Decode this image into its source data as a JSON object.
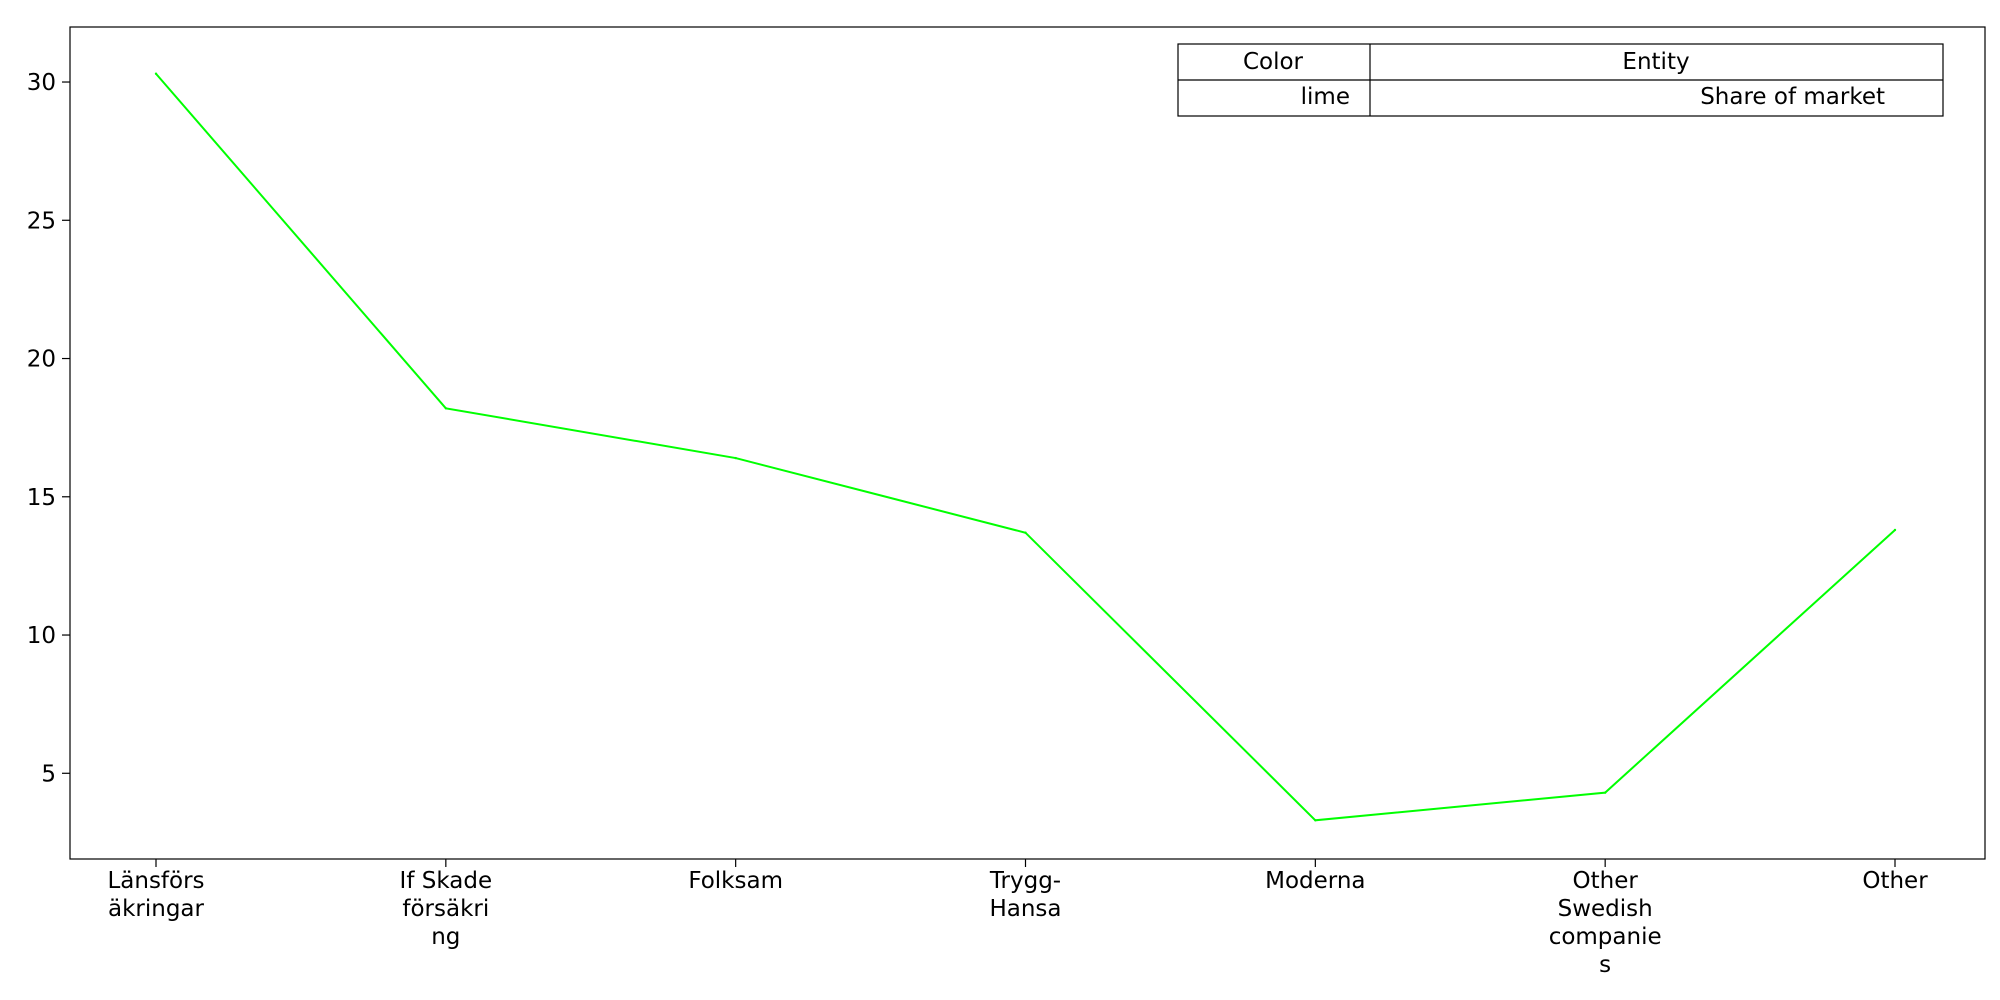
{
  "chart_data": {
    "type": "line",
    "categories": [
      [
        "Länsförs",
        "äkringar"
      ],
      [
        "If Skade",
        "försäkri",
        "ng"
      ],
      [
        "Folksam"
      ],
      [
        "Trygg-",
        "Hansa"
      ],
      [
        "Moderna"
      ],
      [
        "Other",
        "Swedish",
        "companie",
        "s"
      ],
      [
        "Other"
      ]
    ],
    "series": [
      {
        "name": "Share of market",
        "color": "#00ff00",
        "values": [
          30.3,
          18.2,
          16.4,
          13.7,
          3.3,
          4.3,
          13.8
        ]
      }
    ],
    "ylim": [
      1.9,
      31.99
    ],
    "yticks": [
      5,
      10,
      15,
      20,
      25,
      30
    ],
    "grid": false,
    "legend": {
      "placement": "top-right",
      "header": [
        "Color",
        "Entity"
      ],
      "rows": [
        [
          "lime",
          "Share of market"
        ]
      ]
    }
  }
}
